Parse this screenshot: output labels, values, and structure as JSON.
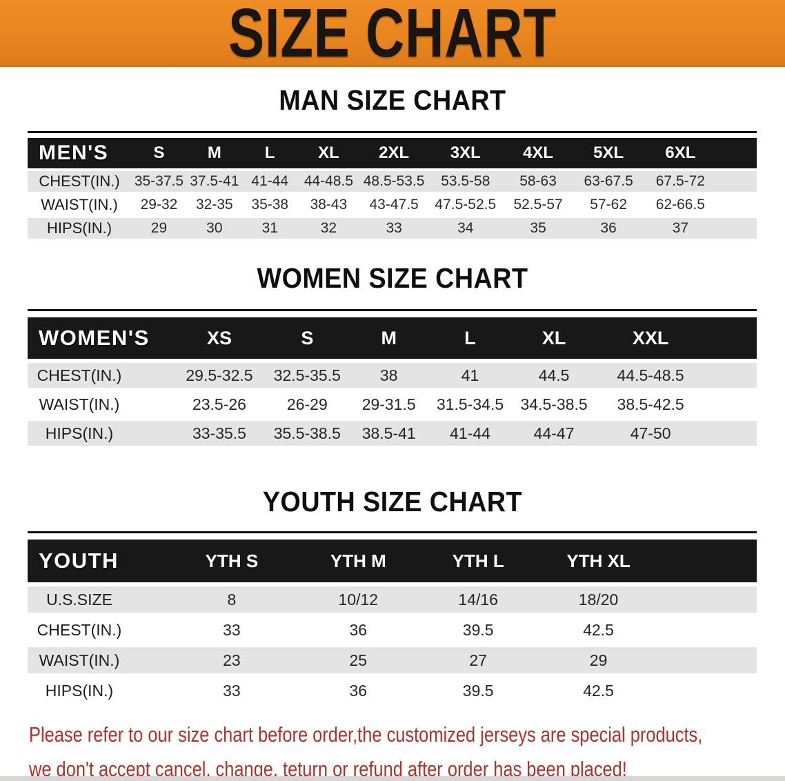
{
  "banner": {
    "title": "SIZE CHART"
  },
  "colors": {
    "banner_orange": "#e8851f",
    "table_header_black": "#181818",
    "row_gray": "#e4e4e4",
    "notice_red": "#b2302a"
  },
  "chart_data": [
    {
      "type": "table",
      "id": "men",
      "title": "MAN SIZE CHART",
      "header_label": "MEN'S",
      "columns": [
        "S",
        "M",
        "L",
        "XL",
        "2XL",
        "3XL",
        "4XL",
        "5XL",
        "6XL"
      ],
      "rows": [
        {
          "label": "CHEST(IN.)",
          "values": [
            "35-37.5",
            "37.5-41",
            "41-44",
            "44-48.5",
            "48.5-53.5",
            "53.5-58",
            "58-63",
            "63-67.5",
            "67.5-72"
          ]
        },
        {
          "label": "WAIST(IN.)",
          "values": [
            "29-32",
            "32-35",
            "35-38",
            "38-43",
            "43-47.5",
            "47.5-52.5",
            "52.5-57",
            "57-62",
            "62-66.5"
          ]
        },
        {
          "label": "HIPS(IN.)",
          "values": [
            "29",
            "30",
            "31",
            "32",
            "33",
            "34",
            "35",
            "36",
            "37"
          ]
        }
      ]
    },
    {
      "type": "table",
      "id": "women",
      "title": "WOMEN SIZE CHART",
      "header_label": "WOMEN'S",
      "columns": [
        "XS",
        "S",
        "M",
        "L",
        "XL",
        "XXL"
      ],
      "rows": [
        {
          "label": "CHEST(IN.)",
          "values": [
            "29.5-32.5",
            "32.5-35.5",
            "38",
            "41",
            "44.5",
            "44.5-48.5"
          ]
        },
        {
          "label": "WAIST(IN.)",
          "values": [
            "23.5-26",
            "26-29",
            "29-31.5",
            "31.5-34.5",
            "34.5-38.5",
            "38.5-42.5"
          ]
        },
        {
          "label": "HIPS(IN.)",
          "values": [
            "33-35.5",
            "35.5-38.5",
            "38.5-41",
            "41-44",
            "44-47",
            "47-50"
          ]
        }
      ]
    },
    {
      "type": "table",
      "id": "youth",
      "title": "YOUTH SIZE CHART",
      "header_label": "YOUTH",
      "columns": [
        "YTH S",
        "YTH M",
        "YTH L",
        "YTH XL"
      ],
      "rows": [
        {
          "label": "U.S.SIZE",
          "values": [
            "8",
            "10/12",
            "14/16",
            "18/20"
          ]
        },
        {
          "label": "CHEST(IN.)",
          "values": [
            "33",
            "36",
            "39.5",
            "42.5"
          ]
        },
        {
          "label": "WAIST(IN.)",
          "values": [
            "23",
            "25",
            "27",
            "29"
          ]
        },
        {
          "label": "HIPS(IN.)",
          "values": [
            "33",
            "36",
            "39.5",
            "42.5"
          ]
        }
      ]
    }
  ],
  "footer": {
    "line1": "Please refer to our size chart before order,the customized jerseys are special products,",
    "line2": "we don't accept cancel, change, teturn or refund after order has been placed!"
  }
}
